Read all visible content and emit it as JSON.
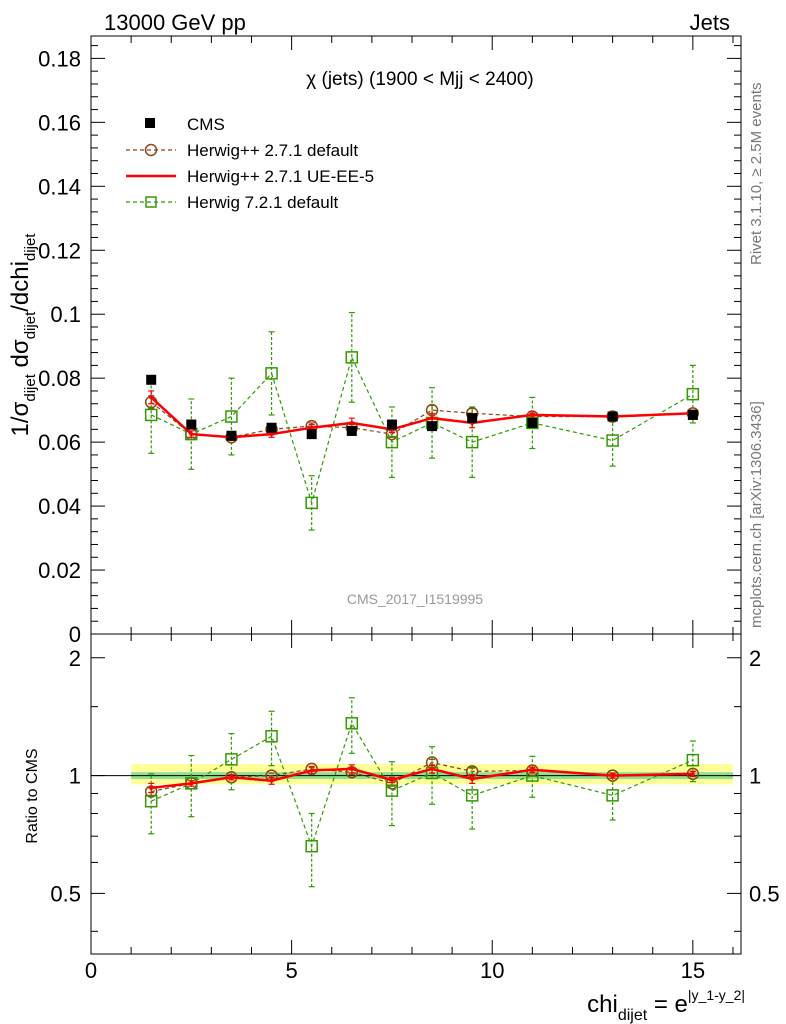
{
  "header": {
    "left": "13000 GeV pp",
    "right": "Jets"
  },
  "side_labels": {
    "top": "Rivet 3.1.10, ≥ 2.5M events",
    "bottom": "mcplots.cern.ch [arXiv:1306.3436]"
  },
  "watermark": "CMS_2017_I1519995",
  "colors": {
    "cms": "#000000",
    "herwigpp_default": "#8b4513",
    "herwigpp_ueee5": "#ff0000",
    "herwig7": "#339900",
    "band_inner": "#8fe08f",
    "band_outer": "#ffff99"
  },
  "chart_data": {
    "type": "scatter",
    "title": "χ (jets) (1900 < Mjj < 2400)",
    "ylabel": "1/σ_dijet dσ_dijet/dchi_dijet",
    "xlabel": "chi_dijet = e^|y_1-y_2|",
    "xlim": [
      0,
      16.2
    ],
    "ylim": [
      0,
      0.187
    ],
    "xticks": [
      0,
      5,
      10,
      15
    ],
    "yticks": [
      0,
      0.02,
      0.04,
      0.06,
      0.08,
      0.1,
      0.12,
      0.14,
      0.16,
      0.18
    ],
    "ytick_labels": [
      "0",
      "0.02",
      "0.04",
      "0.06",
      "0.08",
      "0.1",
      "0.12",
      "0.14",
      "0.16",
      "0.18"
    ],
    "legend_position": "top-left",
    "x": [
      1.5,
      2.5,
      3.5,
      4.5,
      5.5,
      6.5,
      7.5,
      8.5,
      9.5,
      11,
      13,
      15
    ],
    "series": [
      {
        "name": "CMS",
        "style": "data",
        "values": [
          0.0795,
          0.0655,
          0.062,
          0.0645,
          0.0625,
          0.0635,
          0.0655,
          0.065,
          0.0675,
          0.066,
          0.068,
          0.0685
        ],
        "errors": [
          0.001,
          0.001,
          0.001,
          0.001,
          0.001,
          0.001,
          0.001,
          0.001,
          0.001,
          0.001,
          0.001,
          0.001
        ]
      },
      {
        "name": "Herwig++ 2.7.1 default",
        "style": "circle-dashed",
        "values": [
          0.0725,
          0.0625,
          0.0615,
          0.064,
          0.065,
          0.0645,
          0.0625,
          0.07,
          0.069,
          0.068,
          0.068,
          0.069
        ],
        "errors": [
          0.002,
          0.001,
          0.001,
          0.001,
          0.001,
          0.001,
          0.001,
          0.0015,
          0.0015,
          0.001,
          0.001,
          0.001
        ]
      },
      {
        "name": "Herwig++ 2.7.1 UE-EE-5",
        "style": "solid-line",
        "values": [
          0.074,
          0.0625,
          0.0615,
          0.0625,
          0.0645,
          0.066,
          0.064,
          0.0675,
          0.066,
          0.0685,
          0.068,
          0.069
        ],
        "errors": [
          0.002,
          0.001,
          0.001,
          0.001,
          0.001,
          0.0015,
          0.001,
          0.0015,
          0.0015,
          0.001,
          0.001,
          0.001
        ]
      },
      {
        "name": "Herwig 7.2.1 default",
        "style": "square-dashed",
        "values": [
          0.0685,
          0.0625,
          0.068,
          0.0815,
          0.041,
          0.0865,
          0.06,
          0.066,
          0.06,
          0.066,
          0.0605,
          0.075
        ],
        "errors": [
          0.012,
          0.011,
          0.012,
          0.013,
          0.0085,
          0.014,
          0.011,
          0.011,
          0.011,
          0.008,
          0.008,
          0.009
        ]
      }
    ],
    "ratio": {
      "ylabel": "Ratio to CMS",
      "ylim": [
        0.35,
        2.3
      ],
      "yticks": [
        0.5,
        1,
        2
      ],
      "ytick_labels": [
        "0.5",
        "1",
        "2"
      ],
      "band_x": [
        1,
        16
      ],
      "band_inner": [
        0.98,
        1.02
      ],
      "band_outer": [
        0.95,
        1.07
      ],
      "series": [
        {
          "name": "Herwig++ 2.7.1 default",
          "values": [
            0.91,
            0.955,
            0.99,
            1.0,
            1.04,
            1.02,
            0.955,
            1.08,
            1.025,
            1.03,
            1.0,
            1.01
          ],
          "errors": [
            0.02,
            0.015,
            0.015,
            0.015,
            0.015,
            0.015,
            0.015,
            0.02,
            0.02,
            0.015,
            0.015,
            0.015
          ]
        },
        {
          "name": "Herwig++ 2.7.1 UE-EE-5",
          "values": [
            0.93,
            0.955,
            0.99,
            0.97,
            1.03,
            1.04,
            0.975,
            1.04,
            0.98,
            1.035,
            1.0,
            1.01
          ],
          "errors": [
            0.025,
            0.015,
            0.015,
            0.02,
            0.02,
            0.025,
            0.015,
            0.025,
            0.025,
            0.015,
            0.015,
            0.015
          ]
        },
        {
          "name": "Herwig 7.2.1 default",
          "values": [
            0.86,
            0.955,
            1.1,
            1.26,
            0.66,
            1.36,
            0.915,
            1.015,
            0.89,
            1.0,
            0.89,
            1.095
          ],
          "errors": [
            0.15,
            0.17,
            0.18,
            0.2,
            0.14,
            0.22,
            0.17,
            0.17,
            0.16,
            0.12,
            0.12,
            0.13
          ]
        }
      ]
    }
  }
}
